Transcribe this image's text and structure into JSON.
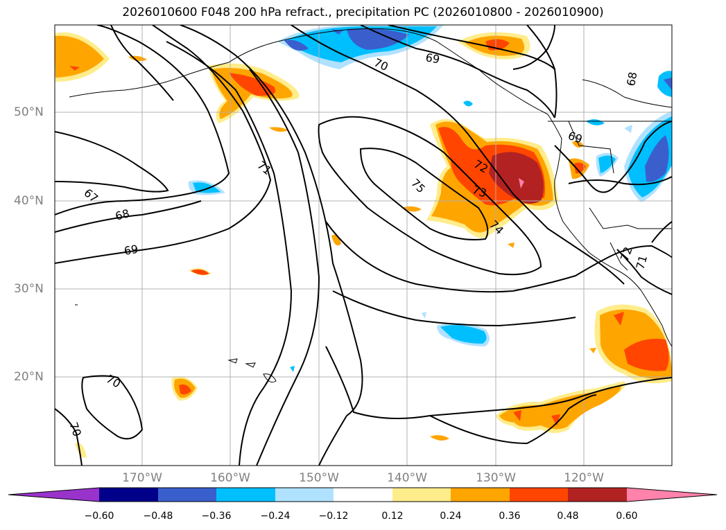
{
  "title": "2026010600 F048 200 hPa refract., precipitation PC (2026010800 - 2026010900)",
  "map": {
    "lon_ticks": [
      "170°W",
      "160°W",
      "150°W",
      "140°W",
      "130°W",
      "120°W"
    ],
    "lat_ticks": [
      "50°N",
      "40°N",
      "30°N",
      "20°N"
    ],
    "contour_labels": [
      "70",
      "69",
      "68",
      "71",
      "72",
      "73",
      "75",
      "74",
      "69",
      "67",
      "68",
      "69",
      "70",
      "70",
      "72",
      "71"
    ]
  },
  "colorbar": {
    "labels": [
      "−0.60",
      "−0.48",
      "−0.36",
      "−0.24",
      "−0.12",
      "0.12",
      "0.24",
      "0.36",
      "0.48",
      "0.60"
    ],
    "colors": [
      "#9933cc",
      "#00008b",
      "#3a5fcd",
      "#00bfff",
      "#b0e2ff",
      "#ffffff",
      "#ffec8b",
      "#ffa500",
      "#ff4500",
      "#b22222",
      "#ff82ab"
    ]
  }
}
